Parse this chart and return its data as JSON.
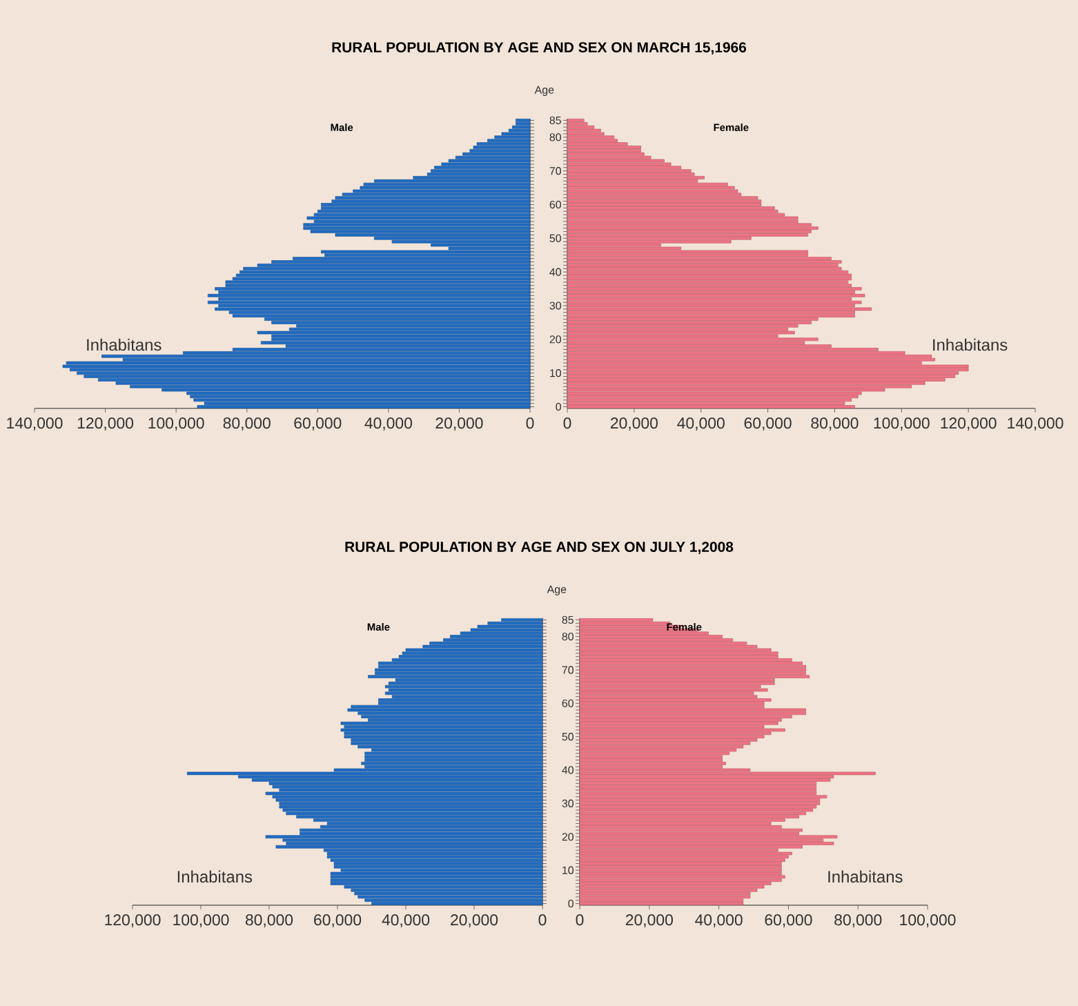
{
  "chart_data": [
    {
      "type": "bar",
      "orientation": "horizontal",
      "title": "RURAL POPULATION BY AGE AND SEX ON MARCH 15,1966",
      "xlabel": "Inhabitans",
      "tick_labels": "x",
      "categories": [
        "85",
        null,
        null,
        null,
        null,
        "80",
        null,
        null,
        null,
        null,
        null,
        null,
        null,
        null,
        null,
        "70",
        null,
        null,
        null,
        null,
        null,
        null,
        null,
        null,
        null,
        "60",
        null,
        null,
        null,
        null,
        null,
        null,
        null,
        null,
        null,
        "50",
        null,
        null,
        null,
        null,
        null,
        null,
        null,
        null,
        null,
        "40",
        null,
        null,
        null,
        null,
        null,
        null,
        null,
        null,
        null,
        "30",
        null,
        null,
        null,
        null,
        null,
        null,
        null,
        null,
        null,
        "20",
        null,
        null,
        null,
        null,
        null,
        null,
        null,
        null,
        null,
        "10",
        null,
        null,
        null,
        null,
        null,
        null,
        null,
        null,
        null,
        "0"
      ],
      "series": [
        {
          "name": "Male",
          "color": "#1f6cc4",
          "values": [
            4000,
            4000,
            5000,
            6000,
            8000,
            10000,
            12000,
            15000,
            16000,
            17000,
            19000,
            21000,
            23000,
            25000,
            27000,
            28000,
            29000,
            33000,
            44000,
            47000,
            48000,
            50000,
            53000,
            55000,
            56000,
            59000,
            59000,
            60000,
            61000,
            63000,
            61000,
            64000,
            64000,
            62000,
            55000,
            44000,
            39000,
            28000,
            23000,
            59000,
            58000,
            67000,
            73000,
            77000,
            81000,
            82000,
            83000,
            84000,
            86000,
            86000,
            89000,
            88000,
            91000,
            88000,
            91000,
            88000,
            89000,
            85000,
            84000,
            75000,
            73000,
            66000,
            68000,
            77000,
            73000,
            73000,
            76000,
            69000,
            84000,
            98000,
            121000,
            115000,
            131000,
            132000,
            130000,
            128000,
            126000,
            122000,
            117000,
            113000,
            104000,
            97000,
            96000,
            95000,
            92000,
            94000
          ]
        }
      ],
      "xlim": [
        140000,
        0
      ],
      "xticks": [
        {
          "value": 140000,
          "label": "140,000"
        },
        {
          "value": 120000,
          "label": "120,000"
        },
        {
          "value": 100000,
          "label": "100,000"
        },
        {
          "value": 80000,
          "label": "80,000"
        },
        {
          "value": 60000,
          "label": "60,000"
        },
        {
          "value": 40000,
          "label": "40,000"
        },
        {
          "value": 20000,
          "label": "20,000"
        },
        0
      ]
    },
    {
      "type": "bar",
      "orientation": "horizontal",
      "xlabel": "Inhabitans",
      "ylabel": "Age",
      "categories": [
        "85",
        null,
        null,
        null,
        null,
        "80",
        null,
        null,
        null,
        null,
        null,
        null,
        null,
        null,
        null,
        "70",
        null,
        null,
        null,
        null,
        null,
        null,
        null,
        null,
        null,
        "60",
        null,
        null,
        null,
        null,
        null,
        null,
        null,
        null,
        null,
        "50",
        null,
        null,
        null,
        null,
        null,
        null,
        null,
        null,
        null,
        "40",
        null,
        null,
        null,
        null,
        null,
        null,
        null,
        null,
        null,
        "30",
        null,
        null,
        null,
        null,
        null,
        null,
        null,
        null,
        null,
        "20",
        null,
        null,
        null,
        null,
        null,
        null,
        null,
        null,
        null,
        "10",
        null,
        null,
        null,
        null,
        null,
        null,
        null,
        null,
        null,
        "0"
      ],
      "series": [
        {
          "name": "Female",
          "color": "#f07284",
          "values": [
            5000,
            6000,
            8000,
            10000,
            11000,
            14000,
            15000,
            18000,
            22000,
            22000,
            23000,
            25000,
            29000,
            31000,
            34000,
            37000,
            38000,
            41000,
            39000,
            48000,
            50000,
            51000,
            52000,
            57000,
            58000,
            58000,
            62000,
            63000,
            65000,
            69000,
            69000,
            73000,
            75000,
            73000,
            72000,
            55000,
            49000,
            28000,
            34000,
            72000,
            72000,
            79000,
            82000,
            81000,
            82000,
            84000,
            85000,
            85000,
            84000,
            85000,
            88000,
            86000,
            89000,
            85000,
            88000,
            86000,
            91000,
            86000,
            86000,
            75000,
            73000,
            69000,
            66000,
            68000,
            63000,
            75000,
            71000,
            79000,
            93000,
            101000,
            109000,
            110000,
            106000,
            120000,
            120000,
            117000,
            116000,
            113000,
            107000,
            103000,
            95000,
            88000,
            87000,
            85000,
            83000,
            86000
          ]
        }
      ],
      "xlim": [
        0,
        140000
      ],
      "xticks": [
        0,
        {
          "value": 20000,
          "label": "20,000"
        },
        {
          "value": 40000,
          "label": "40,000"
        },
        {
          "value": 60000,
          "label": "60,000"
        },
        {
          "value": 80000,
          "label": "80,000"
        },
        {
          "value": 100000,
          "label": "100,000"
        },
        {
          "value": 120000,
          "label": "120,000"
        },
        {
          "value": 140000,
          "label": "140,000"
        }
      ]
    },
    {
      "type": "bar",
      "orientation": "horizontal",
      "title": "RURAL POPULATION BY AGE AND SEX ON JULY 1,2008",
      "xlabel": "Inhabitans",
      "tick_labels": "x",
      "categories": [
        "85",
        null,
        null,
        null,
        null,
        "80",
        null,
        null,
        null,
        null,
        null,
        null,
        null,
        null,
        null,
        "70",
        null,
        null,
        null,
        null,
        null,
        null,
        null,
        null,
        null,
        "60",
        null,
        null,
        null,
        null,
        null,
        null,
        null,
        null,
        null,
        "50",
        null,
        null,
        null,
        null,
        null,
        null,
        null,
        null,
        null,
        "40",
        null,
        null,
        null,
        null,
        null,
        null,
        null,
        null,
        null,
        "30",
        null,
        null,
        null,
        null,
        null,
        null,
        null,
        null,
        null,
        "20",
        null,
        null,
        null,
        null,
        null,
        null,
        null,
        null,
        null,
        "10",
        null,
        null,
        null,
        null,
        null,
        null,
        null,
        null,
        null,
        "0"
      ],
      "series": [
        {
          "name": "Male",
          "color": "#1f6cc4",
          "values": [
            12000,
            16000,
            19000,
            21000,
            24000,
            27000,
            29000,
            33000,
            35000,
            40000,
            41000,
            42000,
            44000,
            48000,
            48000,
            49000,
            49000,
            51000,
            43000,
            45000,
            46000,
            45000,
            46000,
            44000,
            48000,
            48000,
            56000,
            57000,
            54000,
            53000,
            51000,
            59000,
            58000,
            59000,
            58000,
            58000,
            56000,
            56000,
            54000,
            50000,
            52000,
            52000,
            52000,
            53000,
            52000,
            61000,
            104000,
            89000,
            85000,
            80000,
            79000,
            77000,
            81000,
            79000,
            78000,
            77000,
            77000,
            76000,
            75000,
            72000,
            67000,
            63000,
            65000,
            71000,
            71000,
            81000,
            76000,
            75000,
            78000,
            64000,
            63000,
            63000,
            62000,
            61000,
            61000,
            59000,
            62000,
            62000,
            62000,
            62000,
            58000,
            56000,
            55000,
            54000,
            52000,
            50000
          ]
        }
      ],
      "xlim": [
        120000,
        0
      ],
      "xticks": [
        {
          "value": 120000,
          "label": "120,000"
        },
        {
          "value": 100000,
          "label": "100,000"
        },
        {
          "value": 80000,
          "label": "80,000"
        },
        {
          "value": 60000,
          "label": "60,000"
        },
        {
          "value": 40000,
          "label": "40,000"
        },
        {
          "value": 20000,
          "label": "20,000"
        },
        0
      ]
    },
    {
      "type": "bar",
      "orientation": "horizontal",
      "xlabel": "Inhabitans",
      "ylabel": "Age",
      "categories": [
        "85",
        null,
        null,
        null,
        null,
        "80",
        null,
        null,
        null,
        null,
        null,
        null,
        null,
        null,
        null,
        "70",
        null,
        null,
        null,
        null,
        null,
        null,
        null,
        null,
        null,
        "60",
        null,
        null,
        null,
        null,
        null,
        null,
        null,
        null,
        null,
        "50",
        null,
        null,
        null,
        null,
        null,
        null,
        null,
        null,
        null,
        "40",
        null,
        null,
        null,
        null,
        null,
        null,
        null,
        null,
        null,
        "30",
        null,
        null,
        null,
        null,
        null,
        null,
        null,
        null,
        null,
        "20",
        null,
        null,
        null,
        null,
        null,
        null,
        null,
        null,
        null,
        "10",
        null,
        null,
        null,
        null,
        null,
        null,
        null,
        null,
        null,
        "0"
      ],
      "series": [
        {
          "name": "Female",
          "color": "#f07284",
          "values": [
            21000,
            26000,
            29000,
            34000,
            37000,
            41000,
            44000,
            48000,
            51000,
            55000,
            57000,
            57000,
            61000,
            64000,
            65000,
            65000,
            65000,
            66000,
            56000,
            56000,
            52000,
            54000,
            50000,
            51000,
            55000,
            53000,
            53000,
            65000,
            65000,
            61000,
            58000,
            57000,
            53000,
            59000,
            55000,
            53000,
            51000,
            49000,
            47000,
            45000,
            43000,
            41000,
            41000,
            42000,
            41000,
            49000,
            85000,
            73000,
            72000,
            68000,
            68000,
            68000,
            68000,
            71000,
            69000,
            69000,
            68000,
            67000,
            65000,
            63000,
            59000,
            55000,
            58000,
            64000,
            63000,
            74000,
            70000,
            73000,
            64000,
            57000,
            61000,
            60000,
            59000,
            58000,
            58000,
            58000,
            58000,
            59000,
            58000,
            55000,
            53000,
            51000,
            49000,
            49000,
            47000,
            47000
          ]
        }
      ],
      "xlim": [
        0,
        100000
      ],
      "xticks": [
        0,
        {
          "value": 20000,
          "label": "20,000"
        },
        {
          "value": 40000,
          "label": "40,000"
        },
        {
          "value": 60000,
          "label": "60,000"
        },
        {
          "value": 80000,
          "label": "80,000"
        },
        {
          "value": 100000,
          "label": "100,000"
        }
      ]
    }
  ]
}
